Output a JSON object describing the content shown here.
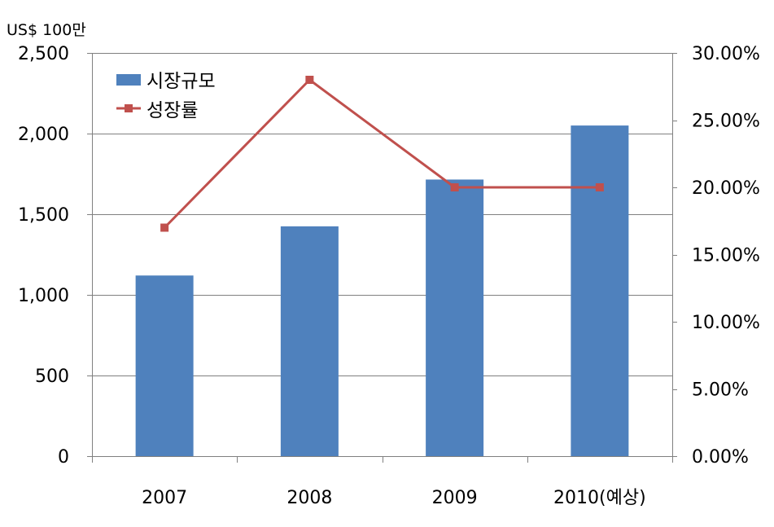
{
  "chart_data": {
    "type": "bar",
    "categories": [
      "2007",
      "2008",
      "2009",
      "2010(예상)"
    ],
    "series": [
      {
        "name": "시장규모",
        "kind": "bar",
        "axis": "left",
        "color": "#4F81BD",
        "values": [
          1120,
          1425,
          1715,
          2050
        ]
      },
      {
        "name": "성장률",
        "kind": "line",
        "axis": "right",
        "color": "#C0504D",
        "values": [
          0.17,
          0.28,
          0.2,
          0.2
        ]
      }
    ],
    "unit_label": "US$ 100만",
    "y_left": {
      "lim": [
        0,
        2500
      ],
      "ticks": [
        0,
        500,
        1000,
        1500,
        2000,
        2500
      ],
      "tick_labels": [
        "0",
        "500",
        "1,000",
        "1,500",
        "2,000",
        "2,500"
      ]
    },
    "y_right": {
      "lim": [
        0,
        0.3
      ],
      "ticks": [
        0,
        0.05,
        0.1,
        0.15,
        0.2,
        0.25,
        0.3
      ],
      "tick_labels": [
        "0.00%",
        "5.00%",
        "10.00%",
        "15.00%",
        "20.00%",
        "25.00%",
        "30.00%"
      ]
    },
    "grid": true,
    "legend": "top-left",
    "grid_color": "#808080"
  }
}
